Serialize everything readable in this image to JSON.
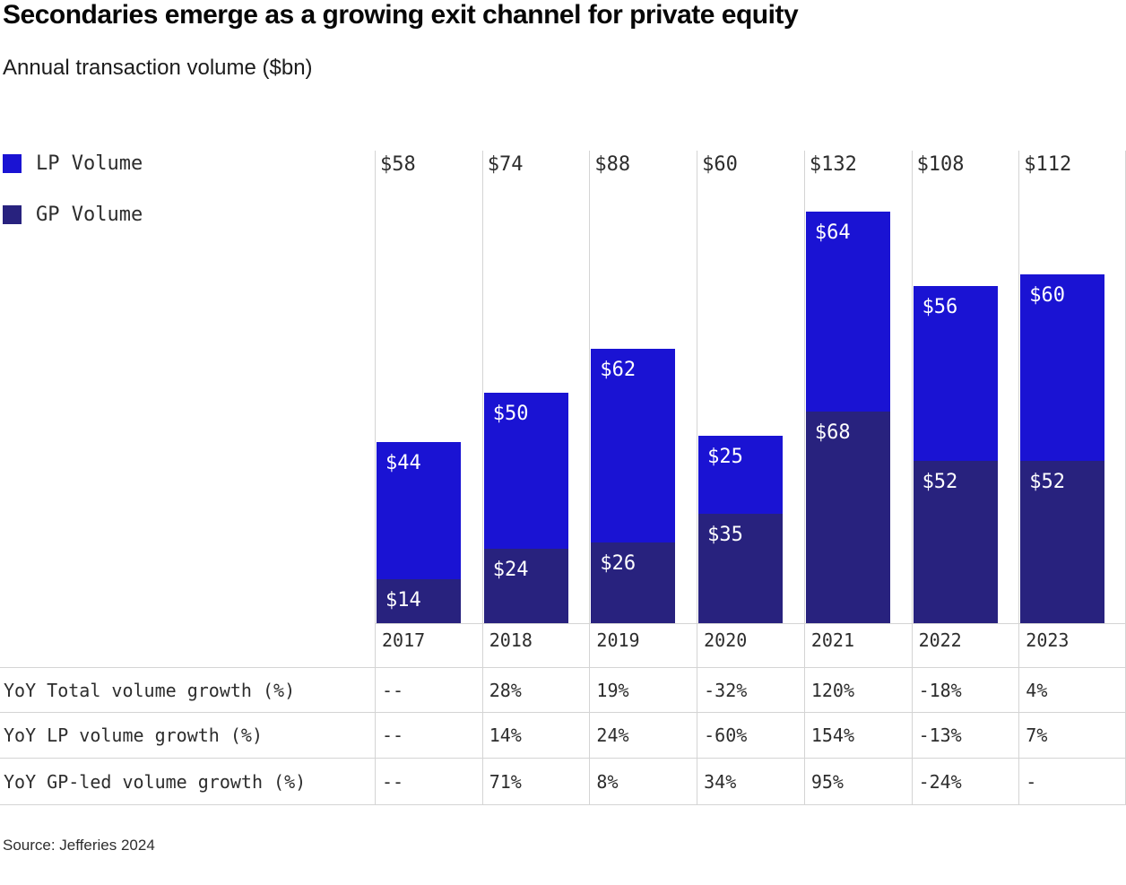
{
  "title": "Secondaries emerge as a growing exit channel for private equity",
  "subtitle": "Annual transaction volume ($bn)",
  "source": "Source: Jefferies 2024",
  "colors": {
    "lp_blue": "#1a13d3",
    "gp_navy": "#28227e",
    "gridline": "#d4d4d4",
    "label_text": "#2d2d2d",
    "bar_label_text": "#ffffff"
  },
  "legend": [
    {
      "name": "LP Volume",
      "color": "#1a13d3"
    },
    {
      "name": "GP Volume",
      "color": "#28227e"
    }
  ],
  "chart_data": {
    "type": "bar",
    "stacked": true,
    "title": "Secondaries emerge as a growing exit channel for private equity",
    "subtitle": "Annual transaction volume ($bn)",
    "value_unit": "$bn",
    "value_prefix": "$",
    "categories": [
      "2017",
      "2018",
      "2019",
      "2020",
      "2021",
      "2022",
      "2023"
    ],
    "series": [
      {
        "name": "LP Volume",
        "values": [
          44,
          50,
          62,
          25,
          64,
          56,
          60
        ]
      },
      {
        "name": "GP Volume",
        "values": [
          14,
          24,
          26,
          35,
          68,
          52,
          52
        ]
      }
    ],
    "totals": [
      58,
      74,
      88,
      60,
      132,
      108,
      112
    ],
    "legend_position": "top-left",
    "grid": "vertical-column-separators",
    "ylim": [
      0,
      132
    ]
  },
  "table": {
    "rows": [
      {
        "label": "YoY Total volume growth (%)",
        "values": [
          "--",
          "28%",
          "19%",
          "-32%",
          "120%",
          "-18%",
          "4%"
        ]
      },
      {
        "label": "YoY LP volume growth (%)",
        "values": [
          "--",
          "14%",
          "24%",
          "-60%",
          "154%",
          "-13%",
          "7%"
        ]
      },
      {
        "label": "YoY GP-led volume growth (%)",
        "values": [
          "--",
          "71%",
          "8%",
          "34%",
          "95%",
          "-24%",
          "-"
        ]
      }
    ]
  }
}
